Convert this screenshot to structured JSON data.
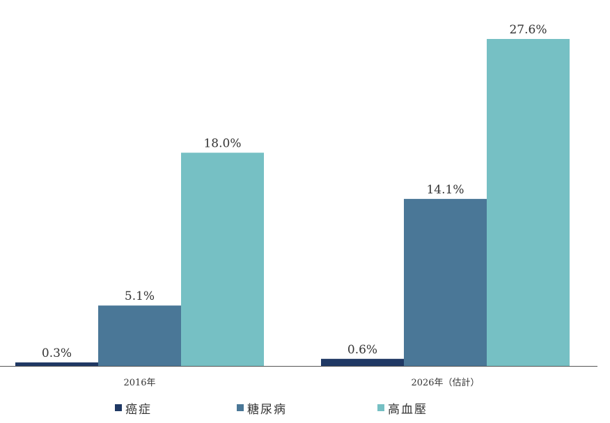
{
  "chart_data": {
    "type": "bar",
    "categories": [
      "2016年",
      "2026年（估計）"
    ],
    "series": [
      {
        "name": "癌症",
        "values": [
          0.3,
          0.6
        ],
        "labels": [
          "0.3%",
          "0.6%"
        ],
        "color": "#1f3864"
      },
      {
        "name": "糖尿病",
        "values": [
          5.1,
          14.1
        ],
        "labels": [
          "5.1%",
          "14.1%"
        ],
        "color": "#4a7797"
      },
      {
        "name": "高血壓",
        "values": [
          18.0,
          27.6
        ],
        "labels": [
          "18.0%",
          "27.6%"
        ],
        "color": "#76c0c4"
      }
    ],
    "ylim": [
      0,
      27.6
    ],
    "grid": false,
    "legend_position": "bottom"
  },
  "colors": {
    "axis": "#555555",
    "text": "#333333"
  }
}
